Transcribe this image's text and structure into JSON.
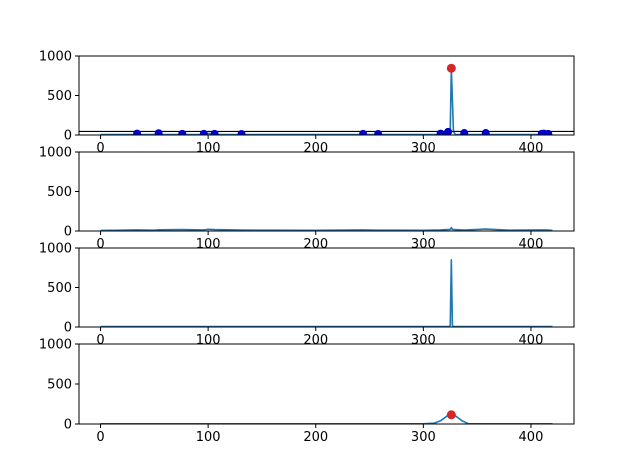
{
  "chart_data": [
    {
      "type": "line",
      "xlim": [
        -20,
        440
      ],
      "ylim": [
        0,
        1000
      ],
      "xticks": [
        0,
        100,
        200,
        300,
        400
      ],
      "yticks": [
        0,
        500,
        1000
      ],
      "series": [
        {
          "color": "#1f77b4",
          "x": [
            0,
            30,
            34,
            38,
            50,
            54,
            58,
            72,
            76,
            80,
            94,
            96,
            100,
            104,
            108,
            128,
            131,
            135,
            200,
            240,
            244,
            248,
            255,
            258,
            262,
            300,
            312,
            316,
            320,
            323,
            325,
            326,
            328,
            330,
            335,
            338,
            342,
            355,
            358,
            362,
            400,
            408,
            410,
            412,
            416,
            420
          ],
          "y": [
            5,
            5,
            18,
            5,
            5,
            22,
            5,
            5,
            15,
            5,
            5,
            14,
            20,
            14,
            5,
            5,
            12,
            5,
            5,
            5,
            14,
            5,
            5,
            12,
            5,
            5,
            5,
            18,
            5,
            40,
            60,
            845,
            40,
            5,
            5,
            25,
            5,
            5,
            25,
            5,
            5,
            5,
            15,
            18,
            5,
            5
          ]
        }
      ],
      "peaks": {
        "color": "#0000cd",
        "x": [
          34,
          54,
          76,
          96,
          106,
          131,
          244,
          258,
          316,
          323,
          338,
          358,
          410,
          412,
          416
        ],
        "y": [
          18,
          22,
          15,
          14,
          14,
          12,
          14,
          12,
          18,
          40,
          25,
          25,
          15,
          18,
          15
        ]
      },
      "max_point": {
        "color": "#d62728",
        "x": 326,
        "y": 845
      },
      "hline": {
        "y": 45,
        "color": "#000000"
      }
    },
    {
      "type": "line",
      "xlim": [
        -20,
        440
      ],
      "ylim": [
        0,
        1000
      ],
      "xticks": [
        0,
        100,
        200,
        300,
        400
      ],
      "yticks": [
        0,
        500,
        1000
      ],
      "series": [
        {
          "color": "#1f77b4",
          "x": [
            0,
            20,
            34,
            50,
            54,
            76,
            96,
            100,
            106,
            131,
            160,
            200,
            244,
            258,
            280,
            300,
            316,
            325,
            326,
            327,
            338,
            358,
            380,
            410,
            416,
            420
          ],
          "y": [
            8,
            10,
            14,
            10,
            16,
            18,
            14,
            22,
            18,
            12,
            10,
            9,
            13,
            11,
            10,
            9,
            14,
            20,
            42,
            20,
            12,
            25,
            10,
            13,
            12,
            8
          ]
        }
      ]
    },
    {
      "type": "line",
      "xlim": [
        -20,
        440
      ],
      "ylim": [
        0,
        1000
      ],
      "xticks": [
        0,
        100,
        200,
        300,
        400
      ],
      "yticks": [
        0,
        500,
        1000
      ],
      "series": [
        {
          "color": "#1f77b4",
          "x": [
            0,
            320,
            324,
            325,
            326,
            327,
            328,
            332,
            420
          ],
          "y": [
            5,
            5,
            5,
            20,
            850,
            20,
            5,
            5,
            5
          ]
        }
      ]
    },
    {
      "type": "line",
      "xlim": [
        -20,
        440
      ],
      "ylim": [
        0,
        1000
      ],
      "xticks": [
        0,
        100,
        200,
        300,
        400
      ],
      "yticks": [
        0,
        500,
        1000
      ],
      "series": [
        {
          "color": "#1f77b4",
          "x": [
            0,
            300,
            310,
            316,
            320,
            323,
            326,
            329,
            332,
            336,
            342,
            420
          ],
          "y": [
            2,
            2,
            10,
            40,
            80,
            110,
            115,
            110,
            80,
            40,
            2,
            2
          ]
        }
      ],
      "max_point": {
        "color": "#d62728",
        "x": 326,
        "y": 115
      }
    }
  ]
}
